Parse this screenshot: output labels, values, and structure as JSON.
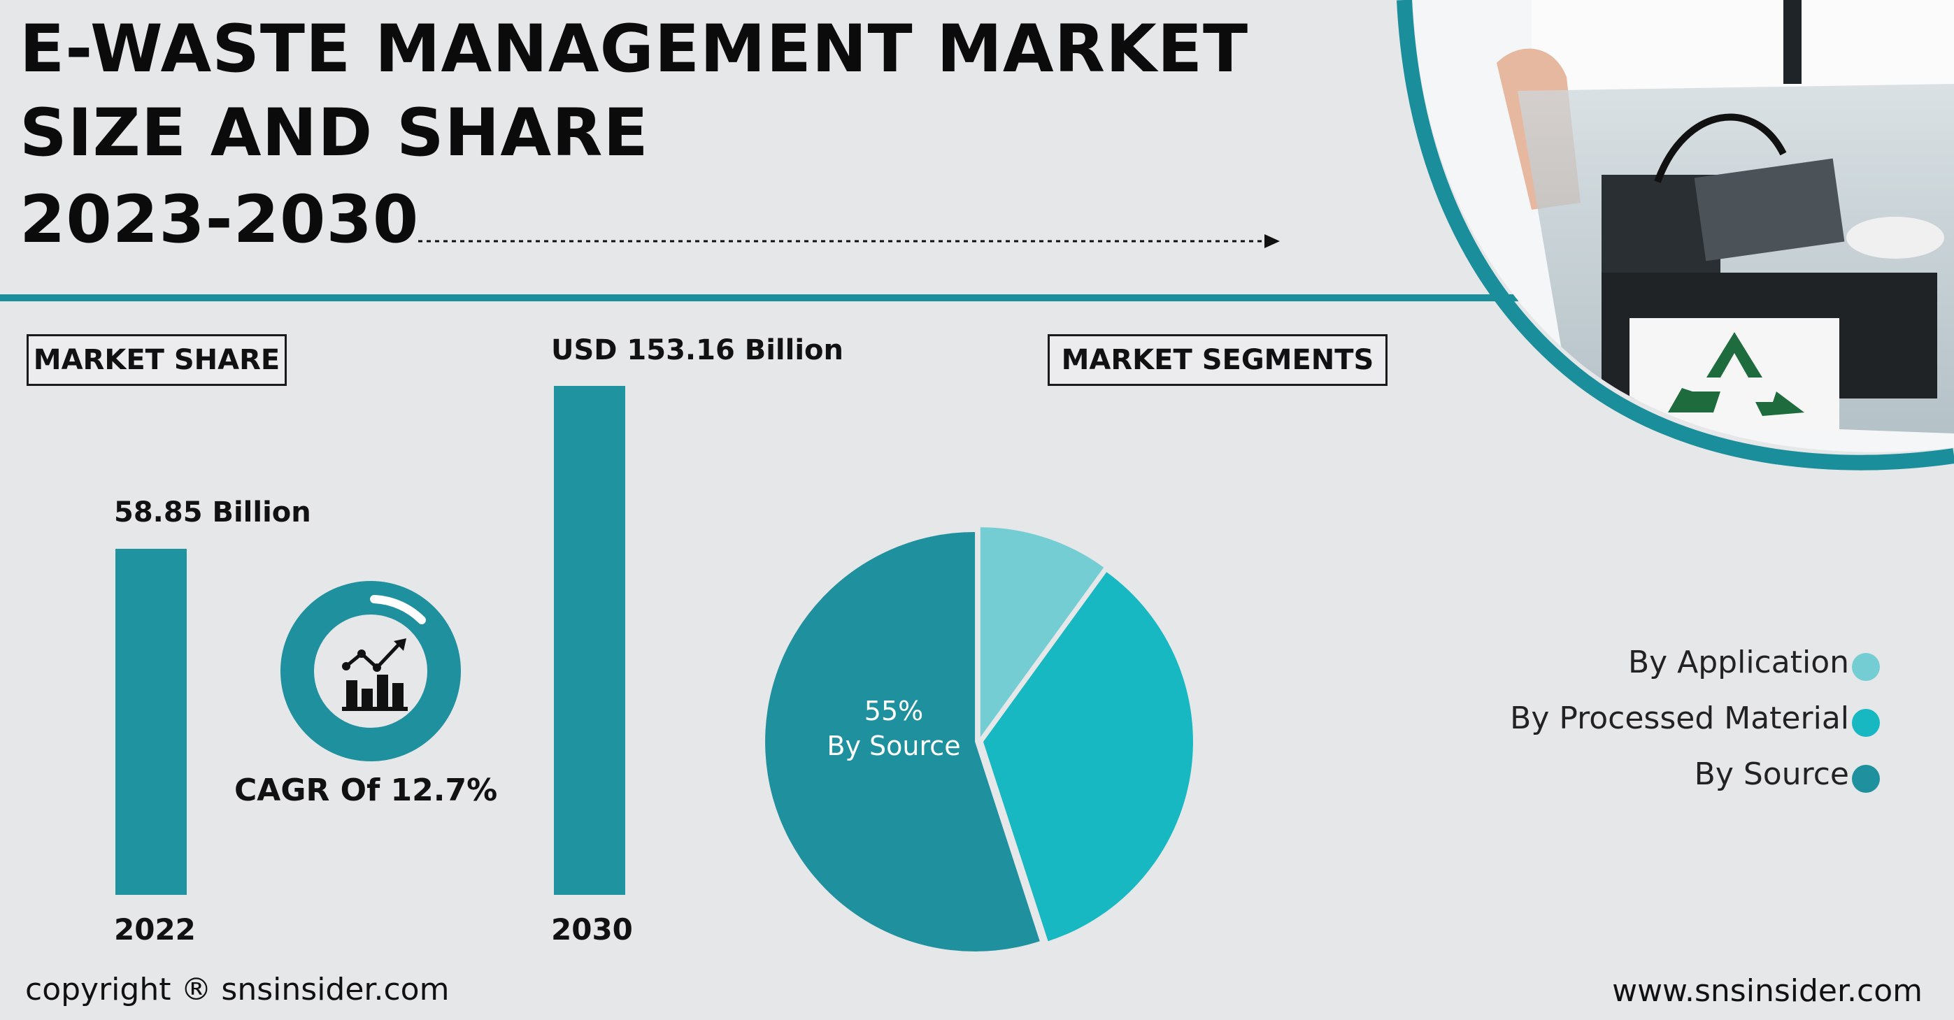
{
  "title": {
    "line1": "E-WASTE MANAGEMENT MARKET",
    "line2": "SIZE AND SHARE",
    "line3": "2023-2030"
  },
  "market_share_label": "MARKET SHARE",
  "market_segments_label": "MARKET SEGMENTS",
  "cagr_label": "CAGR Of 12.7%",
  "footer": {
    "copyright": "copyright ® snsinsider.com",
    "website": "www.snsinsider.com"
  },
  "colors": {
    "bar": "#2093a1",
    "accent_teal": "#1b8e9c",
    "by_application": "#74cdd3",
    "by_processed_material": "#17b8c1",
    "by_source": "#1f909e",
    "background": "#e6e7e9"
  },
  "icons": [
    "growth-chart-icon",
    "recycle-icon",
    "dotted-arrow-icon"
  ],
  "chart_data": [
    {
      "type": "bar",
      "categories": [
        "2022",
        "2030"
      ],
      "values": [
        58.85,
        153.16
      ],
      "value_labels": [
        "58.85 Billion",
        "USD 153.16 Billion"
      ]
    },
    {
      "type": "pie",
      "legend_placement": "right",
      "slices": [
        {
          "name": "By Application",
          "value": 10
        },
        {
          "name": "By Processed Material",
          "value": 35
        },
        {
          "name": "By Source",
          "value": 55
        }
      ],
      "annotation": {
        "value": "55%",
        "text": "By Source"
      }
    }
  ]
}
